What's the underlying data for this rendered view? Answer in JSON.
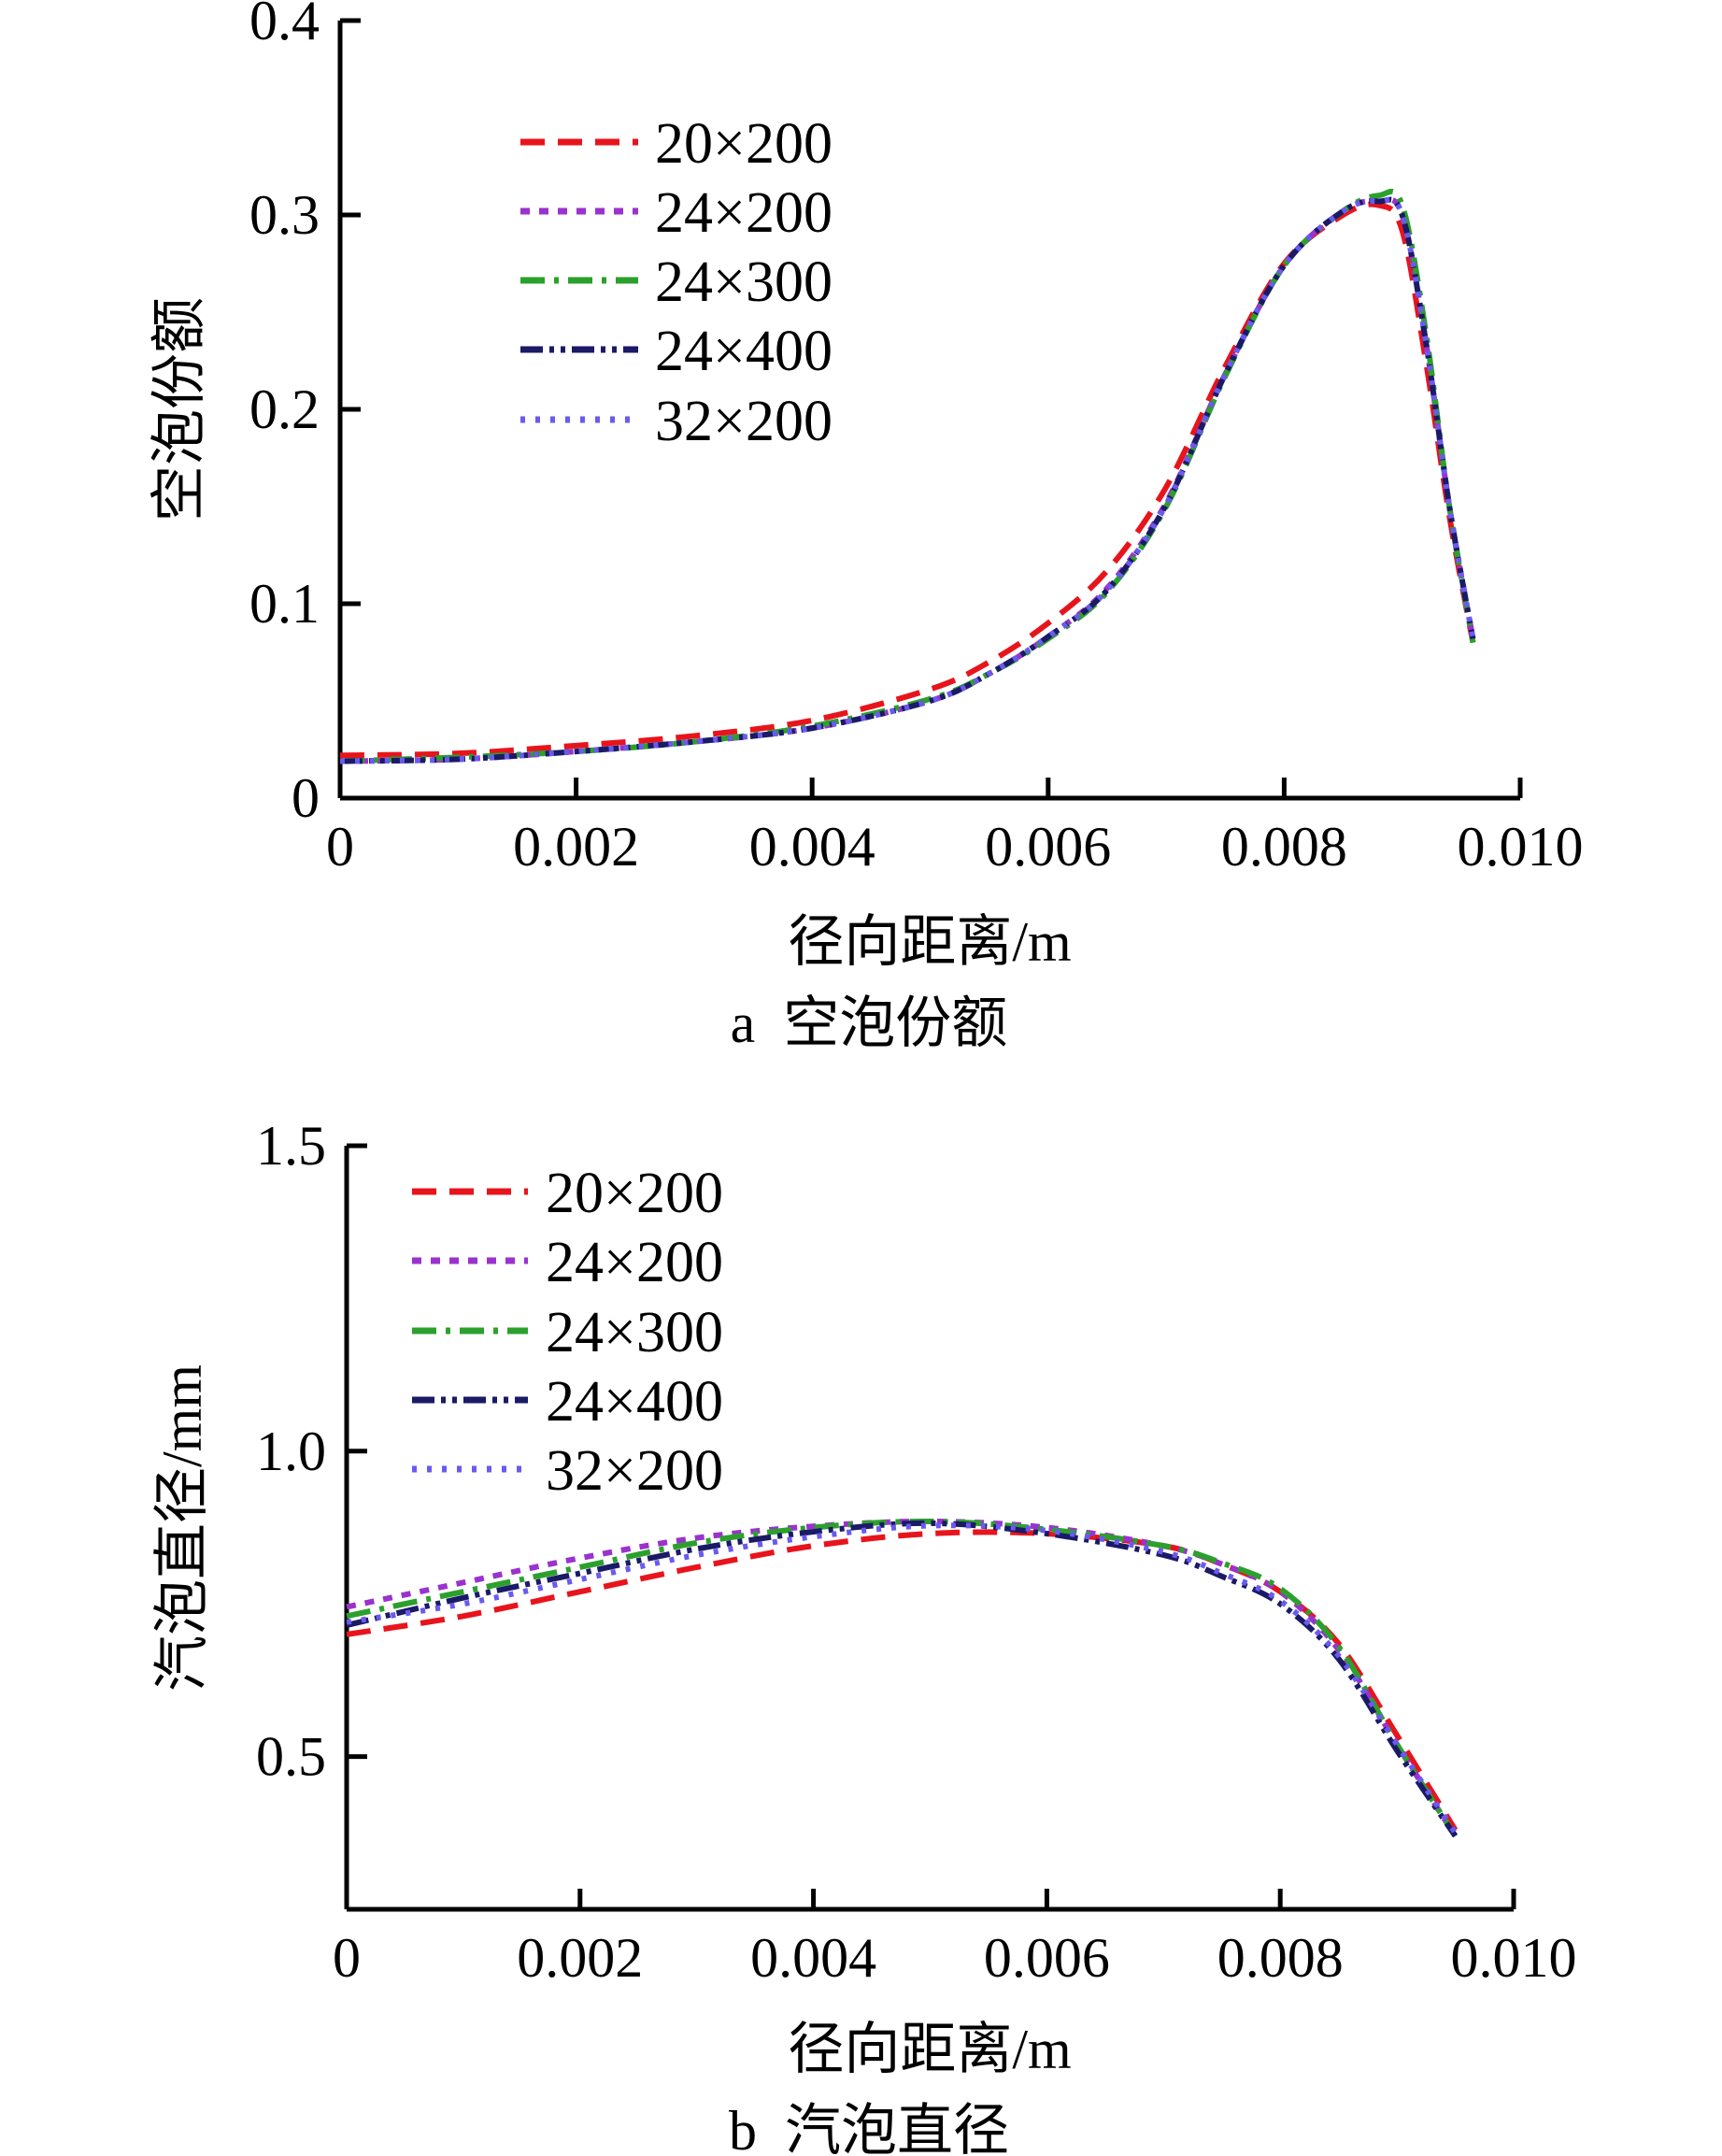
{
  "chart_data": [
    {
      "type": "line",
      "title": "",
      "caption": "a  空泡份额",
      "xlabel": "径向距离/m",
      "ylabel": "空泡份额",
      "xlim": [
        0,
        0.01
      ],
      "ylim": [
        0,
        0.4
      ],
      "xticks": [
        "0",
        "0.002",
        "0.004",
        "0.006",
        "0.008",
        "0.010"
      ],
      "xtick_values": [
        0,
        0.002,
        0.004,
        0.006,
        0.008,
        0.01
      ],
      "yticks": [
        "0",
        "0.1",
        "0.2",
        "0.3",
        "0.4"
      ],
      "ytick_values": [
        0,
        0.1,
        0.2,
        0.3,
        0.4
      ],
      "grid": false,
      "legend_position": "top-left",
      "x": [
        0,
        0.001,
        0.002,
        0.003,
        0.004,
        0.005,
        0.0055,
        0.006,
        0.0065,
        0.007,
        0.0075,
        0.008,
        0.0085,
        0.0088,
        0.009,
        0.0092,
        0.0094,
        0.0096
      ],
      "series": [
        {
          "name": "20×200",
          "color": "#e8141c",
          "dash": "dashed",
          "values": [
            0.022,
            0.023,
            0.027,
            0.032,
            0.04,
            0.056,
            0.07,
            0.09,
            0.117,
            0.16,
            0.222,
            0.275,
            0.3,
            0.305,
            0.292,
            0.225,
            0.145,
            0.08
          ]
        },
        {
          "name": "24×200",
          "color": "#9a32cd",
          "dash": "dotted-short",
          "values": [
            0.019,
            0.02,
            0.024,
            0.029,
            0.036,
            0.05,
            0.064,
            0.083,
            0.108,
            0.152,
            0.218,
            0.274,
            0.302,
            0.307,
            0.3,
            0.235,
            0.15,
            0.082
          ]
        },
        {
          "name": "24×300",
          "color": "#2ca02c",
          "dash": "dash-dot",
          "values": [
            0.019,
            0.021,
            0.024,
            0.029,
            0.037,
            0.051,
            0.064,
            0.082,
            0.106,
            0.15,
            0.217,
            0.274,
            0.302,
            0.31,
            0.305,
            0.24,
            0.15,
            0.08
          ]
        },
        {
          "name": "24×400",
          "color": "#1a1a66",
          "dash": "dash-dot-dot",
          "values": [
            0.019,
            0.02,
            0.024,
            0.029,
            0.036,
            0.05,
            0.064,
            0.083,
            0.107,
            0.151,
            0.218,
            0.274,
            0.302,
            0.307,
            0.3,
            0.235,
            0.15,
            0.082
          ]
        },
        {
          "name": "32×200",
          "color": "#6a5aee",
          "dash": "dotted",
          "values": [
            0.019,
            0.02,
            0.024,
            0.029,
            0.036,
            0.05,
            0.064,
            0.083,
            0.107,
            0.151,
            0.218,
            0.274,
            0.302,
            0.307,
            0.3,
            0.235,
            0.15,
            0.082
          ]
        }
      ]
    },
    {
      "type": "line",
      "title": "",
      "caption": "b  汽泡直径",
      "xlabel": "径向距离/m",
      "ylabel": "汽泡直径/mm",
      "xlim": [
        0,
        0.01
      ],
      "ylim": [
        0.25,
        1.5
      ],
      "xticks": [
        "0",
        "0.002",
        "0.004",
        "0.006",
        "0.008",
        "0.010"
      ],
      "xtick_values": [
        0,
        0.002,
        0.004,
        0.006,
        0.008,
        0.01
      ],
      "yticks": [
        "0.5",
        "1.0",
        "1.5"
      ],
      "ytick_values": [
        0.5,
        1.0,
        1.5
      ],
      "grid": false,
      "legend_position": "top-left",
      "x": [
        0,
        0.001,
        0.002,
        0.003,
        0.004,
        0.005,
        0.006,
        0.007,
        0.0075,
        0.008,
        0.0085,
        0.009,
        0.0095
      ],
      "series": [
        {
          "name": "20×200",
          "color": "#e8141c",
          "dash": "dashed",
          "values": [
            0.7,
            0.73,
            0.77,
            0.81,
            0.845,
            0.865,
            0.865,
            0.845,
            0.815,
            0.77,
            0.685,
            0.535,
            0.38
          ]
        },
        {
          "name": "24×200",
          "color": "#9a32cd",
          "dash": "dotted-short",
          "values": [
            0.745,
            0.785,
            0.825,
            0.858,
            0.877,
            0.885,
            0.875,
            0.845,
            0.815,
            0.77,
            0.675,
            0.52,
            0.37
          ]
        },
        {
          "name": "24×300",
          "color": "#2ca02c",
          "dash": "dash-dot",
          "values": [
            0.73,
            0.77,
            0.81,
            0.85,
            0.875,
            0.885,
            0.872,
            0.845,
            0.817,
            0.775,
            0.68,
            0.52,
            0.37
          ]
        },
        {
          "name": "24×400",
          "color": "#1a1a66",
          "dash": "dash-dot-dot",
          "values": [
            0.715,
            0.76,
            0.8,
            0.84,
            0.868,
            0.882,
            0.865,
            0.83,
            0.795,
            0.75,
            0.66,
            0.51,
            0.37
          ]
        },
        {
          "name": "32×200",
          "color": "#6a5aee",
          "dash": "dotted",
          "values": [
            0.72,
            0.75,
            0.79,
            0.83,
            0.86,
            0.878,
            0.87,
            0.835,
            0.8,
            0.755,
            0.665,
            0.52,
            0.375
          ]
        }
      ]
    }
  ]
}
